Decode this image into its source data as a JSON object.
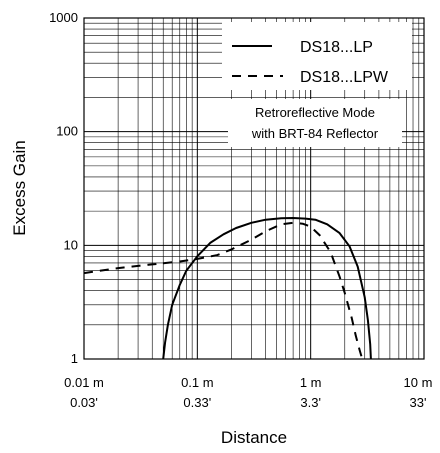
{
  "chart_data": {
    "type": "line",
    "title": "",
    "xlabel": "Distance",
    "ylabel": "Excess Gain",
    "x_scale": "log",
    "y_scale": "log",
    "xlim": [
      0.01,
      10
    ],
    "ylim": [
      1,
      1000
    ],
    "grid": true,
    "x_ticks": [
      {
        "value": 0.01,
        "label": "0.01 m",
        "label2": "0.03'"
      },
      {
        "value": 0.1,
        "label": "0.1 m",
        "label2": "0.33'"
      },
      {
        "value": 1,
        "label": "1 m",
        "label2": "3.3'"
      },
      {
        "value": 10,
        "label": "10 m",
        "label2": "33'"
      }
    ],
    "y_ticks": [
      {
        "value": 1,
        "label": "1"
      },
      {
        "value": 10,
        "label": "10"
      },
      {
        "value": 100,
        "label": "100"
      },
      {
        "value": 1000,
        "label": "1000"
      }
    ],
    "legend_position": "top-right",
    "annotation": [
      "Retroreflective Mode",
      "with BRT-84 Reflector"
    ],
    "series": [
      {
        "name": "DS18...LP",
        "style": "solid",
        "color": "#000000",
        "x": [
          0.05,
          0.052,
          0.055,
          0.06,
          0.07,
          0.08,
          0.1,
          0.13,
          0.17,
          0.22,
          0.3,
          0.4,
          0.55,
          0.7,
          0.9,
          1.1,
          1.4,
          1.8,
          2.2,
          2.6,
          3.0,
          3.2,
          3.35,
          3.4
        ],
        "y": [
          1.0,
          1.4,
          2.0,
          3.0,
          4.5,
          6.0,
          8.0,
          10.5,
          12.5,
          14.2,
          15.8,
          16.8,
          17.3,
          17.4,
          17.2,
          16.8,
          15.3,
          12.8,
          9.8,
          6.5,
          3.5,
          2.2,
          1.35,
          1.0
        ]
      },
      {
        "name": "DS18...LPW",
        "style": "dashed",
        "color": "#000000",
        "x": [
          0.01,
          0.02,
          0.04,
          0.07,
          0.1,
          0.15,
          0.2,
          0.3,
          0.4,
          0.55,
          0.7,
          0.85,
          1.0,
          1.2,
          1.5,
          1.8,
          2.0,
          2.3,
          2.5,
          2.7,
          2.85
        ],
        "y": [
          5.7,
          6.3,
          6.8,
          7.2,
          7.6,
          8.2,
          9.2,
          11.2,
          13.3,
          15.3,
          15.8,
          15.5,
          14.6,
          12.3,
          8.7,
          5.3,
          3.8,
          2.3,
          1.6,
          1.2,
          1.0
        ]
      }
    ]
  }
}
